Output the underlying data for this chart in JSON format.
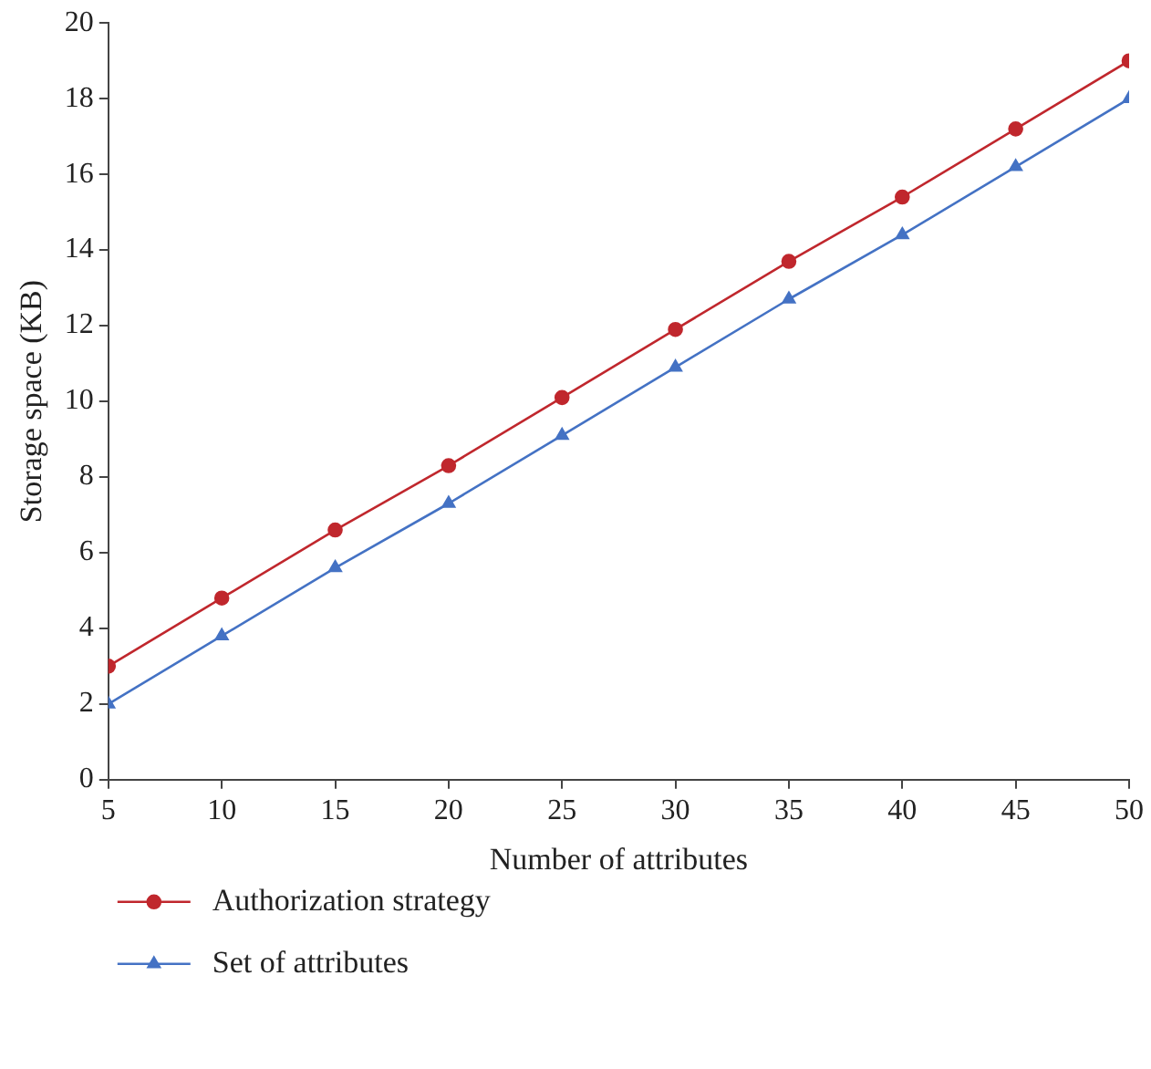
{
  "chart_data": {
    "type": "line",
    "xlabel": "Number of attributes",
    "ylabel": "Storage space (KB)",
    "x": [
      5,
      10,
      15,
      20,
      25,
      30,
      35,
      40,
      45,
      50
    ],
    "series": [
      {
        "name": "Authorization strategy",
        "color": "#c0272d",
        "marker": "circle",
        "values": [
          3,
          4.8,
          6.6,
          8.3,
          10.1,
          11.9,
          13.7,
          15.4,
          17.2,
          19
        ]
      },
      {
        "name": "Set of attributes",
        "color": "#4472c4",
        "marker": "triangle",
        "values": [
          2,
          3.8,
          5.6,
          7.3,
          9.1,
          10.9,
          12.7,
          14.4,
          16.2,
          18
        ]
      }
    ],
    "xlim": [
      5,
      50
    ],
    "xticks": [
      5,
      10,
      15,
      20,
      25,
      30,
      35,
      40,
      45,
      50
    ],
    "ylim": [
      0,
      20
    ],
    "yticks": [
      0,
      2,
      4,
      6,
      8,
      10,
      12,
      14,
      16,
      18,
      20
    ],
    "grid": false,
    "legend": "bottom left",
    "line_style": "solid"
  }
}
